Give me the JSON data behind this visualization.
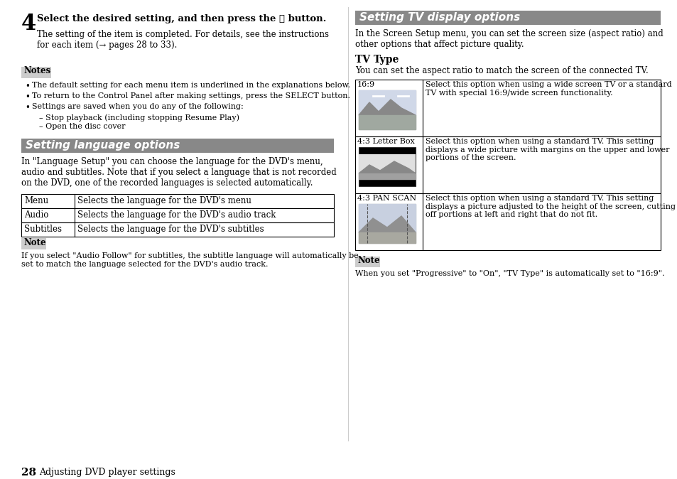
{
  "bg_color": "#ffffff",
  "page_num": "28",
  "page_label": "Adjusting DVD player settings",
  "left_col": {
    "step4_num": "4",
    "step4_text": "Select the desired setting, and then press the ⓧ button.",
    "step4_sub": "The setting of the item is completed. For details, see the instructions\nfor each item (→ pages 28 to 33).",
    "notes_header": "Notes",
    "notes_bullets": [
      "The default setting for each menu item is underlined in the explanations below.",
      "To return to the Control Panel after making settings, press the SELECT button.",
      "Settings are saved when you do any of the following:"
    ],
    "notes_subbullets": [
      "Stop playback (including stopping Resume Play)",
      "Open the disc cover"
    ],
    "section1_title": "Setting language options",
    "section1_body": "In \"Language Setup\" you can choose the language for the DVD's menu,\naudio and subtitles. Note that if you select a language that is not recorded\non the DVD, one of the recorded languages is selected automatically.",
    "lang_table": [
      [
        "Menu",
        "Selects the language for the DVD's menu"
      ],
      [
        "Audio",
        "Selects the language for the DVD's audio track"
      ],
      [
        "Subtitles",
        "Selects the language for the DVD's subtitles"
      ]
    ],
    "note_header": "Note",
    "note_text": "If you select \"Audio Follow\" for subtitles, the subtitle language will automatically be\nset to match the language selected for the DVD's audio track."
  },
  "right_col": {
    "section2_title": "Setting TV display options",
    "section2_body": "In the Screen Setup menu, you can set the screen size (aspect ratio) and\nother options that affect picture quality.",
    "tv_type_header": "TV Type",
    "tv_type_body": "You can set the aspect ratio to match the screen of the connected TV.",
    "tv_table": [
      {
        "label": "16:9",
        "desc": "Select this option when using a wide screen TV or a standard\nTV with special 16:9/wide screen functionality.",
        "img_type": "wide"
      },
      {
        "label": "4:3 Letter Box",
        "desc": "Select this option when using a standard TV. This setting\ndisplays a wide picture with margins on the upper and lower\nportions of the screen.",
        "img_type": "letterbox"
      },
      {
        "label": "4:3 PAN SCAN",
        "desc": "Select this option when using a standard TV. This setting\ndisplays a picture adjusted to the height of the screen, cutting\noff portions at left and right that do not fit.",
        "img_type": "panscan"
      }
    ],
    "note_header": "Note",
    "note_text": "When you set \"Progressive\" to \"On\", \"TV Type\" is automatically set to \"16:9\"."
  },
  "header_bg": "#888888",
  "header_text_color": "#ffffff",
  "note_bg": "#cccccc",
  "note_text_color": "#000000",
  "body_text_color": "#000000",
  "table_border_color": "#000000"
}
